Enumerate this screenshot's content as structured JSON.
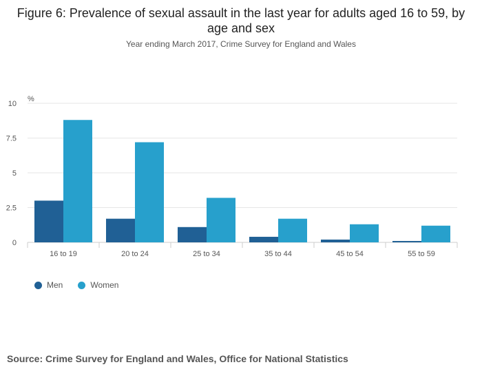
{
  "header": {
    "title": "Figure 6: Prevalence of sexual assault in the last year for adults aged 16 to 59, by age and sex",
    "subtitle": "Year ending March 2017, Crime Survey for England and Wales"
  },
  "footer": {
    "source": "Source: Crime Survey for England and Wales, Office for National Statistics"
  },
  "colors": {
    "men": "#206095",
    "women": "#27a0cc",
    "grid": "#e6e6e6",
    "axis": "#cccccc"
  },
  "chart_data": {
    "type": "bar",
    "title": "Figure 6: Prevalence of sexual assault in the last year for adults aged 16 to 59, by age and sex",
    "subtitle": "Year ending March 2017, Crime Survey for England and Wales",
    "ylabel": "%",
    "xlabel": "",
    "ylim": [
      0,
      10
    ],
    "yticks": [
      "0",
      "2.5",
      "5",
      "7.5",
      "10"
    ],
    "ytick_values": [
      0,
      2.5,
      5,
      7.5,
      10
    ],
    "categories": [
      "16 to 19",
      "20 to 24",
      "25 to 34",
      "35 to 44",
      "45 to 54",
      "55 to 59"
    ],
    "series": [
      {
        "name": "Men",
        "values": [
          3.0,
          1.7,
          1.1,
          0.4,
          0.2,
          0.1
        ]
      },
      {
        "name": "Women",
        "values": [
          8.8,
          7.2,
          3.2,
          1.7,
          1.3,
          1.2
        ]
      }
    ],
    "grid": true,
    "legend": "bottom-left"
  }
}
